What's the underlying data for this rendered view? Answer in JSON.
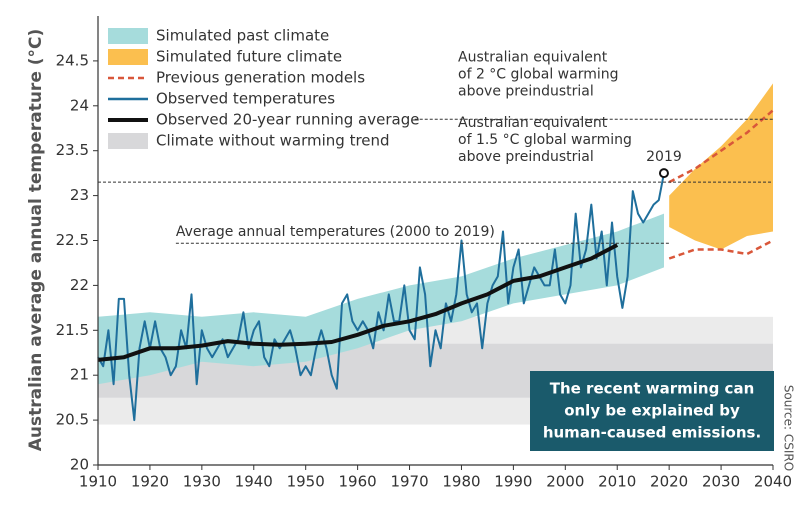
{
  "chart_data": {
    "type": "line",
    "y_label": "Australian average annual temperature (°C)",
    "source": "Source: CSIRO",
    "xlim": [
      1910,
      2040
    ],
    "ylim": [
      20,
      25
    ],
    "xticks": [
      1910,
      1920,
      1930,
      1940,
      1950,
      1960,
      1970,
      1980,
      1990,
      2000,
      2010,
      2020,
      2030,
      2040
    ],
    "yticks": [
      20,
      20.5,
      21,
      21.5,
      22,
      22.5,
      23,
      23.5,
      24,
      24.5
    ],
    "series": [
      {
        "name": "Simulated past climate",
        "kind": "band",
        "color": "#a6dcdc",
        "x": [
          1910,
          1920,
          1930,
          1940,
          1950,
          1960,
          1970,
          1980,
          1990,
          2000,
          2010,
          2019
        ],
        "low": [
          20.9,
          21.0,
          21.15,
          21.1,
          21.15,
          21.3,
          21.5,
          21.6,
          21.8,
          21.9,
          22.0,
          22.2
        ],
        "high": [
          21.65,
          21.7,
          21.65,
          21.7,
          21.65,
          21.85,
          22.0,
          22.1,
          22.3,
          22.45,
          22.6,
          22.8
        ]
      },
      {
        "name": "Simulated future climate",
        "kind": "band",
        "color": "#fbbf4f",
        "x": [
          2020,
          2025,
          2030,
          2035,
          2040
        ],
        "low": [
          22.65,
          22.5,
          22.4,
          22.55,
          22.6
        ],
        "high": [
          23.0,
          23.3,
          23.55,
          23.85,
          24.25
        ]
      },
      {
        "name": "Previous generation models",
        "kind": "dashed-pair",
        "color": "#d9573a",
        "x": [
          2020,
          2025,
          2030,
          2035,
          2040
        ],
        "low": [
          22.3,
          22.4,
          22.4,
          22.35,
          22.5
        ],
        "high": [
          23.15,
          23.3,
          23.5,
          23.7,
          23.95
        ]
      },
      {
        "name": "Observed temperatures",
        "kind": "line",
        "color": "#1f6f9c",
        "x": [
          1910,
          1911,
          1912,
          1913,
          1914,
          1915,
          1916,
          1917,
          1918,
          1919,
          1920,
          1921,
          1922,
          1923,
          1924,
          1925,
          1926,
          1927,
          1928,
          1929,
          1930,
          1931,
          1932,
          1933,
          1934,
          1935,
          1936,
          1937,
          1938,
          1939,
          1940,
          1941,
          1942,
          1943,
          1944,
          1945,
          1946,
          1947,
          1948,
          1949,
          1950,
          1951,
          1952,
          1953,
          1954,
          1955,
          1956,
          1957,
          1958,
          1959,
          1960,
          1961,
          1962,
          1963,
          1964,
          1965,
          1966,
          1967,
          1968,
          1969,
          1970,
          1971,
          1972,
          1973,
          1974,
          1975,
          1976,
          1977,
          1978,
          1979,
          1980,
          1981,
          1982,
          1983,
          1984,
          1985,
          1986,
          1987,
          1988,
          1989,
          1990,
          1991,
          1992,
          1993,
          1994,
          1995,
          1996,
          1997,
          1998,
          1999,
          2000,
          2001,
          2002,
          2003,
          2004,
          2005,
          2006,
          2007,
          2008,
          2009,
          2010,
          2011,
          2012,
          2013,
          2014,
          2015,
          2016,
          2017,
          2018,
          2019
        ],
        "values": [
          21.2,
          21.1,
          21.5,
          20.9,
          21.85,
          21.85,
          21.0,
          20.5,
          21.3,
          21.6,
          21.3,
          21.6,
          21.3,
          21.2,
          21.0,
          21.1,
          21.5,
          21.3,
          21.9,
          20.9,
          21.5,
          21.3,
          21.2,
          21.3,
          21.4,
          21.2,
          21.3,
          21.4,
          21.7,
          21.3,
          21.5,
          21.6,
          21.2,
          21.1,
          21.4,
          21.3,
          21.4,
          21.5,
          21.3,
          21.0,
          21.1,
          21.0,
          21.3,
          21.5,
          21.3,
          21.0,
          20.85,
          21.8,
          21.9,
          21.6,
          21.5,
          21.6,
          21.5,
          21.3,
          21.7,
          21.5,
          21.9,
          21.6,
          21.6,
          22.0,
          21.5,
          21.4,
          22.2,
          21.9,
          21.1,
          21.5,
          21.3,
          21.8,
          21.6,
          21.9,
          22.5,
          21.9,
          21.7,
          21.8,
          21.3,
          21.8,
          22.0,
          22.1,
          22.6,
          21.8,
          22.2,
          22.4,
          21.8,
          22.0,
          22.2,
          22.1,
          22.0,
          22.0,
          22.4,
          21.9,
          21.8,
          22.0,
          22.8,
          22.2,
          22.4,
          22.9,
          22.3,
          22.6,
          22.0,
          22.7,
          22.1,
          21.75,
          22.1,
          23.05,
          22.8,
          22.7,
          22.8,
          22.9,
          22.95,
          23.25
        ]
      },
      {
        "name": "Observed 20-year running average",
        "kind": "line",
        "color": "#111111",
        "x": [
          1910,
          1915,
          1920,
          1925,
          1930,
          1935,
          1940,
          1945,
          1950,
          1955,
          1960,
          1965,
          1970,
          1975,
          1980,
          1985,
          1990,
          1995,
          2000,
          2005,
          2010
        ],
        "values": [
          21.17,
          21.2,
          21.3,
          21.3,
          21.33,
          21.38,
          21.35,
          21.34,
          21.35,
          21.37,
          21.45,
          21.55,
          21.6,
          21.68,
          21.8,
          21.9,
          22.05,
          22.1,
          22.2,
          22.3,
          22.45
        ]
      },
      {
        "name": "Climate without warming trend",
        "kind": "hband",
        "color": "#ebebeb",
        "inner_color": "#d8d8da",
        "outer": [
          20.45,
          21.65
        ],
        "inner": [
          20.75,
          21.35
        ]
      }
    ],
    "annotations": [
      {
        "y": 23.85,
        "xrange": [
          1971,
          2040
        ],
        "lines": [
          "Australian equivalent",
          "of 2 °C global warming",
          "above preindustrial"
        ],
        "color": "#d9573a"
      },
      {
        "y": 23.15,
        "xrange": [
          1910,
          2040
        ],
        "lines": [
          "Australian equivalent",
          "of 1.5 °C global warming",
          "above preindustrial"
        ],
        "color": "#d9573a"
      },
      {
        "y": 22.47,
        "xrange": [
          1925,
          2020
        ],
        "lines": [
          "Average annual temperatures (2000 to 2019)"
        ],
        "color": "#333333"
      }
    ],
    "point_label": "2019",
    "callout": [
      "The recent warming can",
      "only be explained by",
      "human-caused emissions."
    ]
  }
}
